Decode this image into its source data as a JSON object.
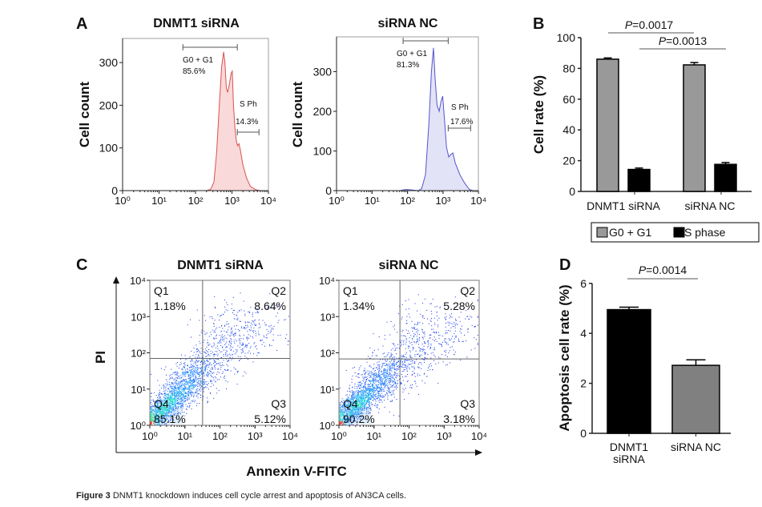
{
  "panels": {
    "A": {
      "letter": "A"
    },
    "B": {
      "letter": "B"
    },
    "C": {
      "letter": "C"
    },
    "D": {
      "letter": "D"
    }
  },
  "caption": {
    "label": "Figure 3",
    "text": " DNMT1 knockdown induces cell cycle arrest and apoptosis of AN3CA cells."
  },
  "chart_data": [
    {
      "id": "A-left",
      "type": "area",
      "title": "DNMT1 siRNA",
      "ylabel": "Cell count",
      "x_scale": "log",
      "xlim": [
        1,
        10000
      ],
      "ylim": [
        0,
        356
      ],
      "x_tick_labels": [
        "10⁰",
        "10¹",
        "10²",
        "10³",
        "10⁴"
      ],
      "y_ticks": [
        0,
        100,
        200,
        300
      ],
      "color": "#d9534f",
      "fill": "#f9d9d9",
      "points": [
        [
          1,
          0
        ],
        [
          200,
          0
        ],
        [
          260,
          3
        ],
        [
          320,
          20
        ],
        [
          380,
          90
        ],
        [
          450,
          200
        ],
        [
          520,
          290
        ],
        [
          590,
          325
        ],
        [
          640,
          300
        ],
        [
          700,
          240
        ],
        [
          760,
          230
        ],
        [
          850,
          250
        ],
        [
          950,
          275
        ],
        [
          1020,
          280
        ],
        [
          1100,
          200
        ],
        [
          1200,
          150
        ],
        [
          1300,
          120
        ],
        [
          1420,
          105
        ],
        [
          1550,
          110
        ],
        [
          1700,
          95
        ],
        [
          2000,
          60
        ],
        [
          2500,
          30
        ],
        [
          3200,
          10
        ],
        [
          4500,
          2
        ],
        [
          6000,
          0
        ],
        [
          10000,
          0
        ]
      ],
      "gates": [
        {
          "name": "G0 + G1",
          "value": "85.6%",
          "range": [
            45,
            1400
          ]
        },
        {
          "name": "S Ph",
          "value": "14.3%",
          "range": [
            1400,
            5500
          ]
        }
      ]
    },
    {
      "id": "A-right",
      "type": "area",
      "title": "siRNA NC",
      "ylabel": "Cell count",
      "x_scale": "log",
      "xlim": [
        1,
        10000
      ],
      "ylim": [
        0,
        388
      ],
      "x_tick_labels": [
        "10⁰",
        "10¹",
        "10²",
        "10³",
        "10⁴"
      ],
      "y_ticks": [
        0,
        100,
        200,
        300
      ],
      "color": "#5555cc",
      "fill": "#e3e3f7",
      "points": [
        [
          1,
          0
        ],
        [
          60,
          0
        ],
        [
          90,
          3
        ],
        [
          120,
          2
        ],
        [
          200,
          0
        ],
        [
          250,
          5
        ],
        [
          320,
          40
        ],
        [
          400,
          170
        ],
        [
          470,
          300
        ],
        [
          540,
          360
        ],
        [
          600,
          280
        ],
        [
          680,
          215
        ],
        [
          780,
          200
        ],
        [
          880,
          225
        ],
        [
          980,
          238
        ],
        [
          1100,
          180
        ],
        [
          1250,
          110
        ],
        [
          1450,
          85
        ],
        [
          1700,
          92
        ],
        [
          1900,
          95
        ],
        [
          2200,
          70
        ],
        [
          3000,
          40
        ],
        [
          4000,
          20
        ],
        [
          5500,
          3
        ],
        [
          7000,
          0
        ],
        [
          10000,
          0
        ]
      ],
      "gates": [
        {
          "name": "G0 + G1",
          "value": "81.3%",
          "range": [
            75,
            1400
          ]
        },
        {
          "name": "S Ph",
          "value": "17.6%",
          "range": [
            1400,
            6000
          ]
        }
      ]
    },
    {
      "id": "B",
      "type": "bar",
      "ylabel": "Cell rate (%)",
      "ylim": [
        0,
        100
      ],
      "y_ticks": [
        0,
        20,
        40,
        60,
        80,
        100
      ],
      "categories": [
        "DNMT1 siRNA",
        "siRNA NC"
      ],
      "series": [
        {
          "name": "G0 + G1",
          "color": "#999999",
          "values": [
            86.0,
            82.3
          ],
          "errors": [
            0.8,
            1.5
          ]
        },
        {
          "name": "S phase",
          "color": "#000000",
          "values": [
            14.3,
            17.6
          ],
          "errors": [
            0.9,
            1.2
          ]
        }
      ],
      "legend": "bottom",
      "annotations": [
        {
          "p_symbol": "P",
          "p_value": "=0.0017",
          "between": [
            "DNMT1 siRNA G0 + G1",
            "siRNA NC G0 + G1"
          ]
        },
        {
          "p_symbol": "P",
          "p_value": "=0.0013",
          "between": [
            "DNMT1 siRNA S phase",
            "siRNA NC S phase"
          ]
        }
      ]
    },
    {
      "id": "C-left",
      "type": "scatter",
      "title": "DNMT1 siRNA",
      "x_scale": "log",
      "y_scale": "log",
      "xlim": [
        1,
        10000
      ],
      "ylim": [
        1,
        10000
      ],
      "tick_labels": [
        "10⁰",
        "10¹",
        "10²",
        "10³",
        "10⁴"
      ],
      "quadrant_gate": [
        32,
        70
      ],
      "quadrants": [
        {
          "name": "Q1",
          "value": "1.18%"
        },
        {
          "name": "Q2",
          "value": "8.64%"
        },
        {
          "name": "Q3",
          "value": "5.12%"
        },
        {
          "name": "Q4",
          "value": "85.1%"
        }
      ]
    },
    {
      "id": "C-right",
      "type": "scatter",
      "title": "siRNA NC",
      "x_scale": "log",
      "y_scale": "log",
      "xlim": [
        1,
        10000
      ],
      "ylim": [
        1,
        10000
      ],
      "tick_labels": [
        "10⁰",
        "10¹",
        "10²",
        "10³",
        "10⁴"
      ],
      "quadrant_gate": [
        55,
        68
      ],
      "quadrants": [
        {
          "name": "Q1",
          "value": "1.34%"
        },
        {
          "name": "Q2",
          "value": "5.28%"
        },
        {
          "name": "Q3",
          "value": "3.18%"
        },
        {
          "name": "Q4",
          "value": "90.2%"
        }
      ]
    },
    {
      "id": "C-axes",
      "xlabel": "Annexin V-FITC",
      "ylabel": "PI"
    },
    {
      "id": "D",
      "type": "bar",
      "ylabel": "Apoptosis cell rate (%)",
      "ylim": [
        0,
        6
      ],
      "y_ticks": [
        0,
        2,
        4,
        6
      ],
      "categories": [
        "DNMT1\nsiRNA",
        "siRNA NC"
      ],
      "category_lines": [
        [
          "DNMT1",
          "siRNA"
        ],
        [
          "siRNA NC"
        ]
      ],
      "values": [
        4.95,
        2.72
      ],
      "errors": [
        0.1,
        0.22
      ],
      "colors": [
        "#000000",
        "#808080"
      ],
      "annotations": [
        {
          "p_symbol": "P",
          "p_value": "=0.0014"
        }
      ]
    }
  ]
}
